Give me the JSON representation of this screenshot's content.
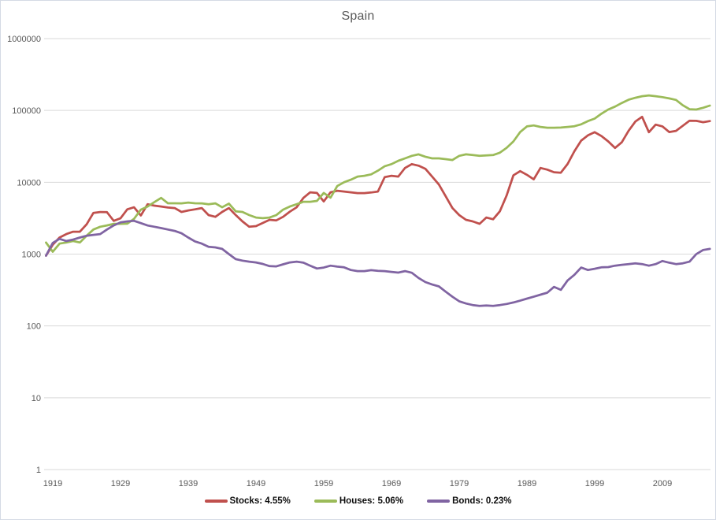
{
  "window": {
    "background": "#ffffff",
    "border_color": "#d4dae4"
  },
  "title": "Spain",
  "legend": {
    "position": "bottom-center",
    "items": [
      {
        "label": "Stocks: 4.55%",
        "color": "#C0504D"
      },
      {
        "label": "Houses: 5.06%",
        "color": "#9BBB59"
      },
      {
        "label": "Bonds: 0.23%",
        "color": "#8064A2"
      }
    ]
  },
  "axes": {
    "x": {
      "tick_labels": [
        "1919",
        "1929",
        "1939",
        "1949",
        "1959",
        "1969",
        "1979",
        "1989",
        "1999",
        "2009"
      ]
    },
    "y": {
      "scale": "log10",
      "tick_labels": [
        "1",
        "10",
        "100",
        "1000",
        "10000",
        "100000",
        "1000000"
      ],
      "tick_values": [
        1,
        10,
        100,
        1000,
        10000,
        100000,
        1000000
      ]
    }
  },
  "style": {
    "gridline_color": "#d9d9d9",
    "axis_text_color": "#595959",
    "title_color": "#595959",
    "legend_text_color": "#0d0d0d",
    "line_width": 2.75
  },
  "chart_data": {
    "type": "line",
    "title": "Spain",
    "xlabel": "",
    "ylabel": "",
    "x_range": [
      1918,
      2016
    ],
    "y_axis": {
      "scale": "log10",
      "range": [
        1,
        1000000
      ],
      "gridlines": true
    },
    "x_ticks": [
      1919,
      1929,
      1939,
      1949,
      1959,
      1969,
      1979,
      1989,
      1999,
      2009
    ],
    "legend_position": "bottom",
    "series": [
      {
        "name": "Stocks: 4.55%",
        "color": "#C0504D",
        "points": [
          [
            1918,
            950
          ],
          [
            1919,
            1350
          ],
          [
            1920,
            1700
          ],
          [
            1921,
            1900
          ],
          [
            1922,
            2050
          ],
          [
            1923,
            2050
          ],
          [
            1924,
            2600
          ],
          [
            1925,
            3750
          ],
          [
            1926,
            3850
          ],
          [
            1927,
            3830
          ],
          [
            1928,
            2900
          ],
          [
            1929,
            3150
          ],
          [
            1930,
            4200
          ],
          [
            1931,
            4480
          ],
          [
            1932,
            3450
          ],
          [
            1933,
            4950
          ],
          [
            1934,
            4730
          ],
          [
            1935,
            4600
          ],
          [
            1936,
            4450
          ],
          [
            1937,
            4370
          ],
          [
            1938,
            3860
          ],
          [
            1939,
            4050
          ],
          [
            1940,
            4200
          ],
          [
            1941,
            4370
          ],
          [
            1942,
            3490
          ],
          [
            1943,
            3300
          ],
          [
            1944,
            3860
          ],
          [
            1945,
            4370
          ],
          [
            1946,
            3500
          ],
          [
            1947,
            2850
          ],
          [
            1948,
            2400
          ],
          [
            1949,
            2450
          ],
          [
            1950,
            2710
          ],
          [
            1951,
            3000
          ],
          [
            1952,
            2950
          ],
          [
            1953,
            3300
          ],
          [
            1954,
            3900
          ],
          [
            1955,
            4480
          ],
          [
            1956,
            6060
          ],
          [
            1957,
            7240
          ],
          [
            1958,
            7100
          ],
          [
            1959,
            5400
          ],
          [
            1960,
            7240
          ],
          [
            1961,
            7620
          ],
          [
            1962,
            7430
          ],
          [
            1963,
            7240
          ],
          [
            1964,
            7060
          ],
          [
            1965,
            7060
          ],
          [
            1966,
            7200
          ],
          [
            1967,
            7430
          ],
          [
            1968,
            11800
          ],
          [
            1969,
            12300
          ],
          [
            1970,
            12000
          ],
          [
            1971,
            15800
          ],
          [
            1972,
            17900
          ],
          [
            1973,
            17000
          ],
          [
            1974,
            15400
          ],
          [
            1975,
            12000
          ],
          [
            1976,
            9300
          ],
          [
            1977,
            6380
          ],
          [
            1978,
            4370
          ],
          [
            1979,
            3490
          ],
          [
            1980,
            3000
          ],
          [
            1981,
            2850
          ],
          [
            1982,
            2640
          ],
          [
            1983,
            3230
          ],
          [
            1984,
            3050
          ],
          [
            1985,
            3940
          ],
          [
            1986,
            6540
          ],
          [
            1987,
            12500
          ],
          [
            1988,
            14300
          ],
          [
            1989,
            12700
          ],
          [
            1990,
            11000
          ],
          [
            1991,
            15800
          ],
          [
            1992,
            15000
          ],
          [
            1993,
            13800
          ],
          [
            1994,
            13600
          ],
          [
            1995,
            18000
          ],
          [
            1996,
            27000
          ],
          [
            1997,
            38000
          ],
          [
            1998,
            45000
          ],
          [
            1999,
            49800
          ],
          [
            2000,
            44000
          ],
          [
            2001,
            37000
          ],
          [
            2002,
            30000
          ],
          [
            2003,
            36000
          ],
          [
            2004,
            52000
          ],
          [
            2005,
            70000
          ],
          [
            2006,
            81400
          ],
          [
            2007,
            49800
          ],
          [
            2008,
            63400
          ],
          [
            2009,
            60000
          ],
          [
            2010,
            50000
          ],
          [
            2011,
            52000
          ],
          [
            2012,
            61000
          ],
          [
            2013,
            72000
          ],
          [
            2014,
            71500
          ],
          [
            2015,
            68500
          ],
          [
            2016,
            71000
          ]
        ]
      },
      {
        "name": "Houses: 5.06%",
        "color": "#9BBB59",
        "points": [
          [
            1918,
            1450
          ],
          [
            1919,
            1080
          ],
          [
            1920,
            1400
          ],
          [
            1921,
            1450
          ],
          [
            1922,
            1520
          ],
          [
            1923,
            1450
          ],
          [
            1924,
            1800
          ],
          [
            1925,
            2200
          ],
          [
            1926,
            2400
          ],
          [
            1927,
            2510
          ],
          [
            1928,
            2640
          ],
          [
            1929,
            2640
          ],
          [
            1930,
            2650
          ],
          [
            1931,
            3100
          ],
          [
            1932,
            4160
          ],
          [
            1933,
            4600
          ],
          [
            1934,
            5300
          ],
          [
            1935,
            6060
          ],
          [
            1936,
            5100
          ],
          [
            1937,
            5100
          ],
          [
            1938,
            5080
          ],
          [
            1939,
            5210
          ],
          [
            1940,
            5100
          ],
          [
            1941,
            5080
          ],
          [
            1942,
            4950
          ],
          [
            1943,
            5080
          ],
          [
            1944,
            4480
          ],
          [
            1945,
            5050
          ],
          [
            1946,
            3940
          ],
          [
            1947,
            3860
          ],
          [
            1948,
            3490
          ],
          [
            1949,
            3230
          ],
          [
            1950,
            3160
          ],
          [
            1951,
            3230
          ],
          [
            1952,
            3490
          ],
          [
            1953,
            4160
          ],
          [
            1954,
            4600
          ],
          [
            1955,
            4950
          ],
          [
            1956,
            5350
          ],
          [
            1957,
            5350
          ],
          [
            1958,
            5500
          ],
          [
            1959,
            7100
          ],
          [
            1960,
            6100
          ],
          [
            1961,
            8860
          ],
          [
            1962,
            10000
          ],
          [
            1963,
            10850
          ],
          [
            1964,
            12000
          ],
          [
            1965,
            12300
          ],
          [
            1966,
            12900
          ],
          [
            1967,
            14500
          ],
          [
            1968,
            16700
          ],
          [
            1969,
            17900
          ],
          [
            1970,
            19900
          ],
          [
            1971,
            21500
          ],
          [
            1972,
            23300
          ],
          [
            1973,
            24500
          ],
          [
            1974,
            22700
          ],
          [
            1975,
            21500
          ],
          [
            1976,
            21500
          ],
          [
            1977,
            21000
          ],
          [
            1978,
            20400
          ],
          [
            1979,
            23300
          ],
          [
            1980,
            24500
          ],
          [
            1981,
            23900
          ],
          [
            1982,
            23300
          ],
          [
            1983,
            23600
          ],
          [
            1984,
            23900
          ],
          [
            1985,
            25800
          ],
          [
            1986,
            30200
          ],
          [
            1987,
            37000
          ],
          [
            1988,
            50000
          ],
          [
            1989,
            60000
          ],
          [
            1990,
            61900
          ],
          [
            1991,
            59000
          ],
          [
            1992,
            57400
          ],
          [
            1993,
            57400
          ],
          [
            1994,
            57800
          ],
          [
            1995,
            58900
          ],
          [
            1996,
            60300
          ],
          [
            1997,
            64000
          ],
          [
            1998,
            71000
          ],
          [
            1999,
            77000
          ],
          [
            2000,
            90000
          ],
          [
            2001,
            103000
          ],
          [
            2002,
            113000
          ],
          [
            2003,
            127000
          ],
          [
            2004,
            141000
          ],
          [
            2005,
            150000
          ],
          [
            2006,
            158000
          ],
          [
            2007,
            162000
          ],
          [
            2008,
            158000
          ],
          [
            2009,
            153000
          ],
          [
            2010,
            147000
          ],
          [
            2011,
            140000
          ],
          [
            2012,
            118000
          ],
          [
            2013,
            104000
          ],
          [
            2014,
            103000
          ],
          [
            2015,
            109000
          ],
          [
            2016,
            117000
          ]
        ]
      },
      {
        "name": "Bonds: 0.23%",
        "color": "#8064A2",
        "points": [
          [
            1918,
            950
          ],
          [
            1919,
            1430
          ],
          [
            1920,
            1630
          ],
          [
            1921,
            1520
          ],
          [
            1922,
            1590
          ],
          [
            1923,
            1700
          ],
          [
            1924,
            1800
          ],
          [
            1925,
            1850
          ],
          [
            1926,
            1900
          ],
          [
            1927,
            2200
          ],
          [
            1928,
            2510
          ],
          [
            1929,
            2770
          ],
          [
            1930,
            2850
          ],
          [
            1931,
            2900
          ],
          [
            1932,
            2700
          ],
          [
            1933,
            2500
          ],
          [
            1934,
            2400
          ],
          [
            1935,
            2300
          ],
          [
            1936,
            2200
          ],
          [
            1937,
            2100
          ],
          [
            1938,
            1950
          ],
          [
            1939,
            1700
          ],
          [
            1940,
            1500
          ],
          [
            1941,
            1400
          ],
          [
            1942,
            1260
          ],
          [
            1943,
            1240
          ],
          [
            1944,
            1180
          ],
          [
            1945,
            1000
          ],
          [
            1946,
            850
          ],
          [
            1947,
            810
          ],
          [
            1948,
            785
          ],
          [
            1949,
            765
          ],
          [
            1950,
            730
          ],
          [
            1951,
            680
          ],
          [
            1952,
            675
          ],
          [
            1953,
            720
          ],
          [
            1954,
            765
          ],
          [
            1955,
            785
          ],
          [
            1956,
            760
          ],
          [
            1957,
            690
          ],
          [
            1958,
            630
          ],
          [
            1959,
            650
          ],
          [
            1960,
            690
          ],
          [
            1961,
            670
          ],
          [
            1962,
            655
          ],
          [
            1963,
            600
          ],
          [
            1964,
            580
          ],
          [
            1965,
            580
          ],
          [
            1966,
            597
          ],
          [
            1967,
            585
          ],
          [
            1968,
            580
          ],
          [
            1969,
            565
          ],
          [
            1970,
            552
          ],
          [
            1971,
            580
          ],
          [
            1972,
            550
          ],
          [
            1973,
            465
          ],
          [
            1974,
            408
          ],
          [
            1975,
            377
          ],
          [
            1976,
            355
          ],
          [
            1977,
            300
          ],
          [
            1978,
            255
          ],
          [
            1979,
            220
          ],
          [
            1980,
            205
          ],
          [
            1981,
            195
          ],
          [
            1982,
            190
          ],
          [
            1983,
            192
          ],
          [
            1984,
            190
          ],
          [
            1985,
            195
          ],
          [
            1986,
            202
          ],
          [
            1987,
            212
          ],
          [
            1988,
            225
          ],
          [
            1989,
            240
          ],
          [
            1990,
            255
          ],
          [
            1991,
            272
          ],
          [
            1992,
            290
          ],
          [
            1993,
            350
          ],
          [
            1994,
            318
          ],
          [
            1995,
            430
          ],
          [
            1996,
            515
          ],
          [
            1997,
            650
          ],
          [
            1998,
            600
          ],
          [
            1999,
            625
          ],
          [
            2000,
            655
          ],
          [
            2001,
            660
          ],
          [
            2002,
            690
          ],
          [
            2003,
            710
          ],
          [
            2004,
            725
          ],
          [
            2005,
            745
          ],
          [
            2006,
            725
          ],
          [
            2007,
            690
          ],
          [
            2008,
            725
          ],
          [
            2009,
            800
          ],
          [
            2010,
            760
          ],
          [
            2011,
            725
          ],
          [
            2012,
            745
          ],
          [
            2013,
            785
          ],
          [
            2014,
            1000
          ],
          [
            2015,
            1140
          ],
          [
            2016,
            1180
          ]
        ]
      }
    ]
  }
}
